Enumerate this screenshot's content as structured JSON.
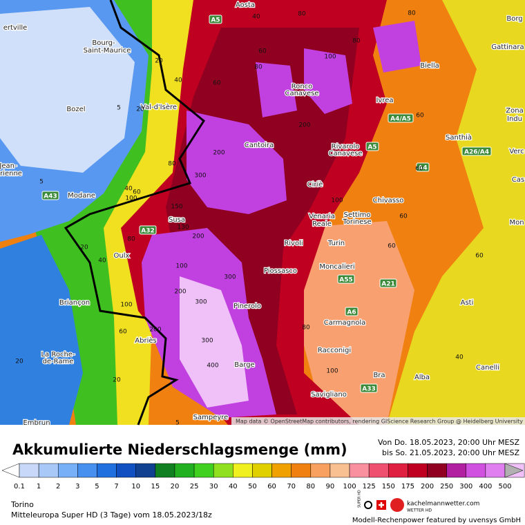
{
  "header": {
    "title": "Akkumulierte Niederschlagsmenge (mm)",
    "period_from": "Von Do. 18.05.2023, 20:00 Uhr MESZ",
    "period_to": "bis So. 21.05.2023, 20:00 Uhr MESZ"
  },
  "map": {
    "places": [
      "Aosta",
      "Borg",
      "Gattinara",
      "Biella",
      "Ivrea",
      "Zona",
      "Indu",
      "Santhià",
      "Verc",
      "ertville",
      "Bourg-",
      "Saint-Maurice",
      "Bozel",
      "Val-d'Isère",
      "Ronco",
      "Canavese",
      "Cantoira",
      "Rivarolo",
      "Canavese",
      "Ciriè",
      "Jean-",
      "rienne",
      "Modane",
      "Susa",
      "Venaria",
      "Reale",
      "Settimo",
      "Torinese",
      "Chivasso",
      "Cas",
      "Mon",
      "Oulx",
      "Rivoli",
      "Turin",
      "Moncalieri",
      "Piossasco",
      "Asti",
      "Briançon",
      "Pinerolo",
      "Carmagnola",
      "Abriès",
      "La Roche-",
      "de-Rame",
      "Racconigi",
      "Canelli",
      "Barge",
      "Bra",
      "Alba",
      "Savigliano",
      "Embrun",
      "Sampeyre"
    ],
    "roads": [
      "A5",
      "A5",
      "A4/A5",
      "A4",
      "A26/A4",
      "A43",
      "A32",
      "A55",
      "A21",
      "A6",
      "A33"
    ],
    "contours": [
      40,
      80,
      80,
      80,
      60,
      20,
      40,
      60,
      80,
      100,
      5,
      20,
      200,
      200,
      80,
      60,
      60,
      300,
      40,
      60,
      100,
      100,
      60,
      150,
      130,
      200,
      80,
      20,
      40,
      60,
      60,
      300,
      100,
      200,
      300,
      100,
      60,
      200,
      300,
      400,
      80,
      40,
      100,
      20,
      5,
      20,
      5
    ],
    "attribution": "Map data © OpenStreetMap contributors, rendering GIScience Research Group @ Heidelberg University"
  },
  "legend": {
    "labels": [
      0.1,
      1,
      2,
      3,
      5,
      7,
      10,
      15,
      20,
      25,
      30,
      40,
      50,
      60,
      70,
      80,
      90,
      100,
      125,
      150,
      175,
      200,
      250,
      300,
      400,
      500
    ],
    "colors": [
      "#ffffff",
      "#c8d8f8",
      "#a8c8f8",
      "#78b0f8",
      "#4890f0",
      "#2070e0",
      "#1050c0",
      "#104090",
      "#108020",
      "#20b020",
      "#40d020",
      "#90e020",
      "#f0f020",
      "#e0d000",
      "#f0a000",
      "#f08010",
      "#f8a060",
      "#f8c090",
      "#f890a0",
      "#f05070",
      "#e02040",
      "#c00020",
      "#900020",
      "#b020a0",
      "#d050e0",
      "#e080f0",
      "#f0c0f8",
      "#b0b0b0"
    ]
  },
  "footer": {
    "location": "Torino",
    "model": "Mitteleuropa Super HD (3 Tage) vom 18.05.2023/18z",
    "brand": "kachelmannwetter.com",
    "brand_sub": "WETTER HD",
    "super_hd": "SUPER HD",
    "sponsor": "Modell-Rechenpower featured by uvensys GmbH"
  }
}
